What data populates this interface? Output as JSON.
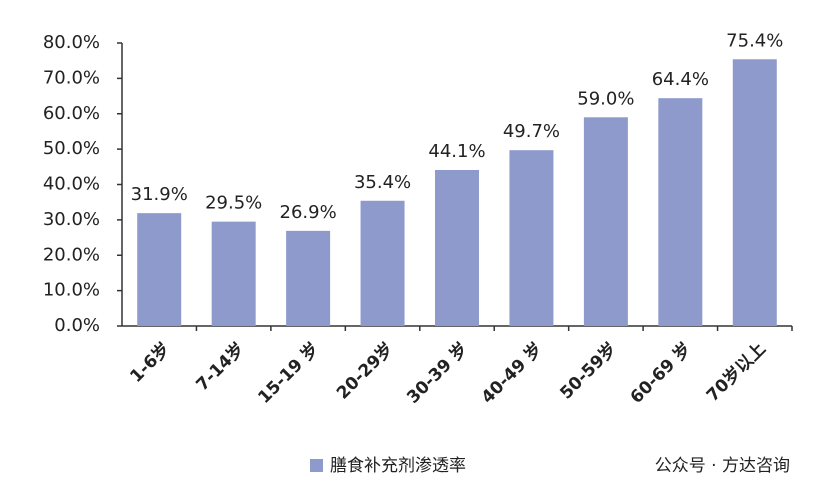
{
  "chart_data": {
    "type": "bar",
    "categories": [
      "1-6岁",
      "7-14岁",
      "15-19 岁",
      "20-29岁",
      "30-39 岁",
      "40-49 岁",
      "50-59岁",
      "60-69 岁",
      "70岁以上"
    ],
    "series": [
      {
        "name": "膳食补充剂渗透率",
        "color": "#8e9acb",
        "values": [
          31.9,
          29.5,
          26.9,
          35.4,
          44.1,
          49.7,
          59.0,
          64.4,
          75.4
        ],
        "value_labels": [
          "31.9%",
          "29.5%",
          "26.9%",
          "35.4%",
          "44.1%",
          "49.7%",
          "59.0%",
          "64.4%",
          "75.4%"
        ]
      }
    ],
    "ylim": [
      0,
      80
    ],
    "yticks": [
      {
        "value": 0,
        "label": "0.0%"
      },
      {
        "value": 10,
        "label": "10.0%"
      },
      {
        "value": 20,
        "label": "20.0%"
      },
      {
        "value": 30,
        "label": "30.0%"
      },
      {
        "value": 40,
        "label": "40.0%"
      },
      {
        "value": 50,
        "label": "50.0%"
      },
      {
        "value": 60,
        "label": "60.0%"
      },
      {
        "value": 70,
        "label": "70.0%"
      },
      {
        "value": 80,
        "label": "80.0%"
      }
    ],
    "watermark": "公众号 · 方达咨询"
  }
}
